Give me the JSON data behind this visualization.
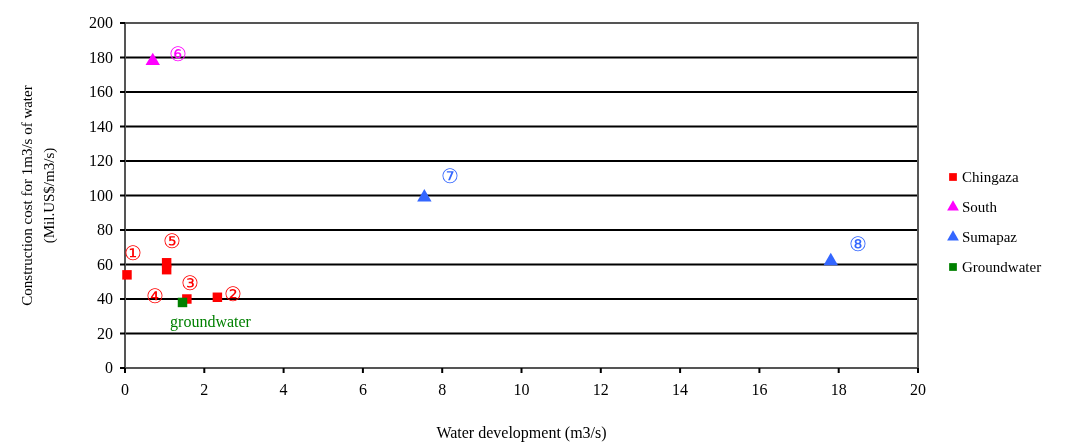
{
  "chart_data": {
    "type": "scatter",
    "xlabel": "Water development (m3/s)",
    "ylabel": "Construction cost for 1m3/s  of water\n(Mil.US$/m3/s)",
    "xlim": [
      0,
      20
    ],
    "xticks": [
      0,
      2,
      4,
      6,
      8,
      10,
      12,
      14,
      16,
      18,
      20
    ],
    "ylim": [
      0,
      200
    ],
    "yticks": [
      0,
      20,
      40,
      60,
      80,
      100,
      120,
      140,
      160,
      180,
      200
    ],
    "grid": "y",
    "legend": "right",
    "series": [
      {
        "name": "Chingaza",
        "color": "#ff0000",
        "marker": "square",
        "x": [
          0.05,
          2.33,
          1.56,
          1.05,
          1.05
        ],
        "values": [
          54,
          41,
          40,
          57,
          61
        ]
      },
      {
        "name": "South",
        "color": "#ff00ff",
        "marker": "triangle",
        "x": [
          0.7
        ],
        "values": [
          178
        ]
      },
      {
        "name": "Sumapaz",
        "color": "#3366ff",
        "marker": "triangle",
        "x": [
          7.55,
          17.8
        ],
        "values": [
          99,
          62
        ]
      },
      {
        "name": "Groundwater",
        "color": "#008000",
        "marker": "square",
        "x": [
          1.45
        ],
        "values": [
          38
        ]
      }
    ],
    "annotations": [
      {
        "text": "①",
        "x": 0.05,
        "y": 54
      },
      {
        "text": "②",
        "x": 2.33,
        "y": 41
      },
      {
        "text": "③",
        "x": 1.56,
        "y": 40
      },
      {
        "text": "④",
        "x": 1.05,
        "y": 57
      },
      {
        "text": "⑤",
        "x": 1.05,
        "y": 61
      },
      {
        "text": "⑥",
        "x": 0.7,
        "y": 178
      },
      {
        "text": "⑦",
        "x": 7.55,
        "y": 99
      },
      {
        "text": "⑧",
        "x": 17.8,
        "y": 62
      },
      {
        "text": "groundwater",
        "x": 1.45,
        "y": 38
      }
    ]
  }
}
